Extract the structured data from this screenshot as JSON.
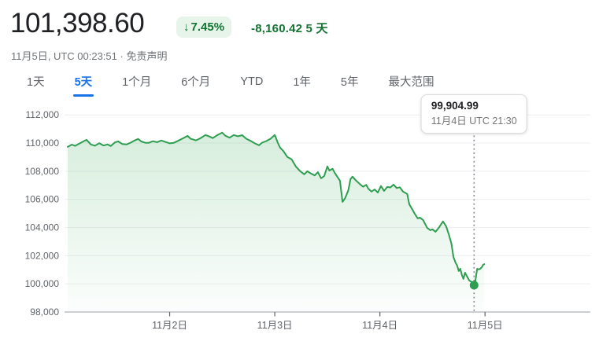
{
  "header": {
    "price": "101,398.60",
    "change_arrow": "↓",
    "change_percent": "7.45%",
    "change_amount": "-8,160.42 5 天",
    "timestamp": "11月5日, UTC 00:23:51",
    "separator": " · ",
    "disclaimer": "免责声明",
    "colors": {
      "change_green": "#137333",
      "badge_bg": "#e6f4ea"
    }
  },
  "tabs": {
    "items": [
      "1天",
      "5天",
      "1个月",
      "6个月",
      "YTD",
      "1年",
      "5年",
      "最大范围"
    ],
    "active_index": 1,
    "active_color": "#1a73e8"
  },
  "chart_data": {
    "type": "area",
    "title": "",
    "xlabel": "",
    "ylabel": "",
    "legend": "none",
    "grid": "horizontal",
    "line_color": "#2e9e50",
    "fill_color": "#34a853",
    "x_axis": {
      "unit": "days since 11月1日 00:00 UTC",
      "range_days": [
        0,
        5
      ],
      "tick_day_offsets": [
        1,
        2,
        3,
        4
      ],
      "tick_labels": [
        "11月2日",
        "11月3日",
        "11月4日",
        "11月5日"
      ]
    },
    "y_axis": {
      "range": [
        98000,
        112350
      ],
      "ticks": [
        112000,
        110000,
        108000,
        106000,
        104000,
        102000,
        100000,
        98000
      ],
      "tick_labels": [
        "112,000",
        "110,000",
        "108,000",
        "106,000",
        "104,000",
        "102,000",
        "100,000",
        "98,000"
      ]
    },
    "marker": {
      "t": 3.896,
      "value": 99904.99,
      "price_label": "99,904.99",
      "time_label": "11月4日 UTC 21:30"
    },
    "series": [
      {
        "name": "price",
        "points": [
          [
            0.03,
            109730
          ],
          [
            0.07,
            109890
          ],
          [
            0.1,
            109800
          ],
          [
            0.14,
            109960
          ],
          [
            0.18,
            110120
          ],
          [
            0.21,
            110230
          ],
          [
            0.25,
            109900
          ],
          [
            0.29,
            109810
          ],
          [
            0.33,
            109990
          ],
          [
            0.37,
            109830
          ],
          [
            0.41,
            109900
          ],
          [
            0.44,
            109790
          ],
          [
            0.48,
            110050
          ],
          [
            0.51,
            110120
          ],
          [
            0.55,
            109930
          ],
          [
            0.59,
            109900
          ],
          [
            0.63,
            110030
          ],
          [
            0.66,
            110160
          ],
          [
            0.7,
            110290
          ],
          [
            0.73,
            110110
          ],
          [
            0.77,
            110020
          ],
          [
            0.8,
            110010
          ],
          [
            0.84,
            110130
          ],
          [
            0.88,
            110060
          ],
          [
            0.92,
            110180
          ],
          [
            0.96,
            110080
          ],
          [
            1.0,
            109980
          ],
          [
            1.04,
            110020
          ],
          [
            1.08,
            110160
          ],
          [
            1.12,
            110310
          ],
          [
            1.17,
            110510
          ],
          [
            1.2,
            110300
          ],
          [
            1.25,
            110190
          ],
          [
            1.29,
            110330
          ],
          [
            1.34,
            110570
          ],
          [
            1.38,
            110460
          ],
          [
            1.41,
            110350
          ],
          [
            1.45,
            110540
          ],
          [
            1.5,
            110740
          ],
          [
            1.53,
            110520
          ],
          [
            1.57,
            110380
          ],
          [
            1.61,
            110570
          ],
          [
            1.65,
            110480
          ],
          [
            1.69,
            110560
          ],
          [
            1.73,
            110300
          ],
          [
            1.77,
            110150
          ],
          [
            1.81,
            109980
          ],
          [
            1.85,
            109840
          ],
          [
            1.88,
            110030
          ],
          [
            1.92,
            110140
          ],
          [
            1.96,
            110310
          ],
          [
            2.0,
            110570
          ],
          [
            2.03,
            110000
          ],
          [
            2.05,
            109680
          ],
          [
            2.08,
            109450
          ],
          [
            2.12,
            109010
          ],
          [
            2.16,
            108840
          ],
          [
            2.2,
            108340
          ],
          [
            2.24,
            108010
          ],
          [
            2.28,
            107780
          ],
          [
            2.31,
            108000
          ],
          [
            2.34,
            107850
          ],
          [
            2.38,
            107700
          ],
          [
            2.41,
            107930
          ],
          [
            2.44,
            107500
          ],
          [
            2.47,
            107650
          ],
          [
            2.5,
            108340
          ],
          [
            2.52,
            108050
          ],
          [
            2.55,
            108170
          ],
          [
            2.57,
            107890
          ],
          [
            2.6,
            107550
          ],
          [
            2.62,
            107330
          ],
          [
            2.645,
            105820
          ],
          [
            2.67,
            106100
          ],
          [
            2.7,
            106660
          ],
          [
            2.72,
            107440
          ],
          [
            2.74,
            107610
          ],
          [
            2.77,
            107360
          ],
          [
            2.81,
            107080
          ],
          [
            2.84,
            106900
          ],
          [
            2.87,
            107030
          ],
          [
            2.89,
            106760
          ],
          [
            2.92,
            106550
          ],
          [
            2.95,
            106700
          ],
          [
            2.98,
            106480
          ],
          [
            3.01,
            106950
          ],
          [
            3.04,
            106600
          ],
          [
            3.07,
            106880
          ],
          [
            3.1,
            106850
          ],
          [
            3.13,
            107050
          ],
          [
            3.16,
            106800
          ],
          [
            3.19,
            106860
          ],
          [
            3.22,
            106550
          ],
          [
            3.26,
            106380
          ],
          [
            3.28,
            105650
          ],
          [
            3.31,
            105260
          ],
          [
            3.33,
            105000
          ],
          [
            3.36,
            104650
          ],
          [
            3.38,
            104700
          ],
          [
            3.41,
            104540
          ],
          [
            3.43,
            104260
          ],
          [
            3.45,
            103980
          ],
          [
            3.48,
            103810
          ],
          [
            3.5,
            103870
          ],
          [
            3.53,
            103700
          ],
          [
            3.56,
            103980
          ],
          [
            3.6,
            104430
          ],
          [
            3.63,
            104090
          ],
          [
            3.655,
            103530
          ],
          [
            3.68,
            102860
          ],
          [
            3.7,
            101910
          ],
          [
            3.72,
            101500
          ],
          [
            3.735,
            101300
          ],
          [
            3.75,
            100910
          ],
          [
            3.765,
            101070
          ],
          [
            3.78,
            100630
          ],
          [
            3.795,
            100350
          ],
          [
            3.81,
            100790
          ],
          [
            3.83,
            100510
          ],
          [
            3.85,
            100240
          ],
          [
            3.87,
            100150
          ],
          [
            3.882,
            99960
          ],
          [
            3.896,
            99904.99
          ],
          [
            3.908,
            100180
          ],
          [
            3.916,
            100630
          ],
          [
            3.926,
            101070
          ],
          [
            3.94,
            101020
          ],
          [
            3.955,
            101070
          ],
          [
            3.97,
            101190
          ],
          [
            3.982,
            101350
          ],
          [
            3.993,
            101398.6
          ]
        ]
      }
    ]
  }
}
